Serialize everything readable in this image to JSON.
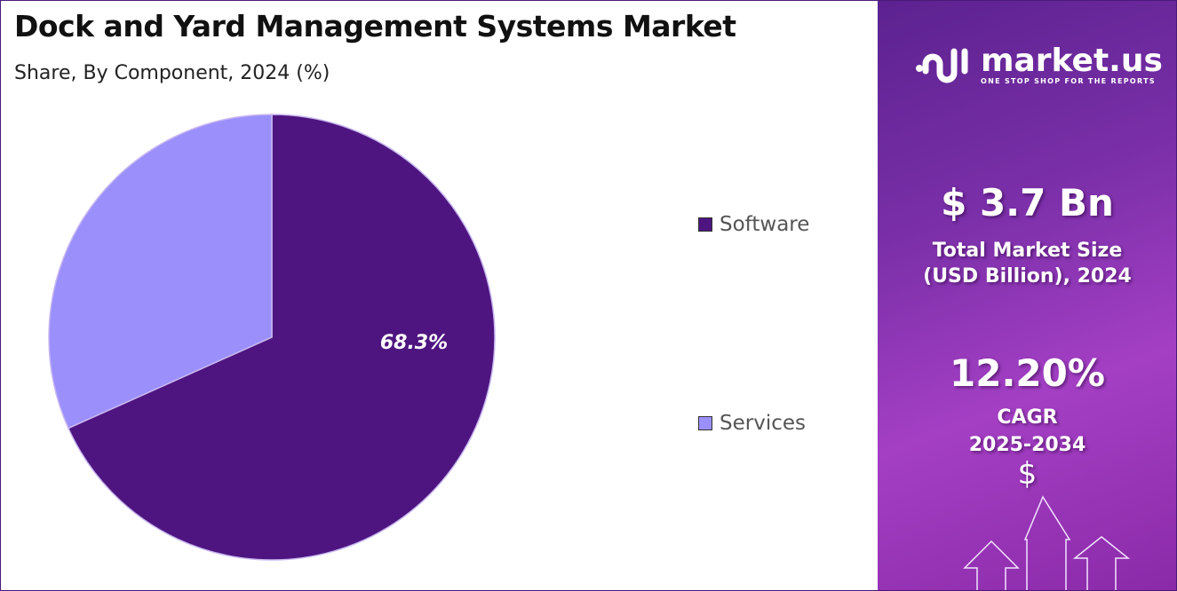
{
  "header": {
    "title": "Dock and Yard Management Systems Market",
    "subtitle": "Share, By Component, 2024 (%)"
  },
  "chart_data": {
    "type": "pie",
    "title": "Dock and Yard Management Systems Market",
    "subtitle": "Share, By Component, 2024 (%)",
    "categories": [
      "Software",
      "Services"
    ],
    "values": [
      68.3,
      31.7
    ],
    "colors": [
      "#4e1580",
      "#9b8ffc"
    ],
    "data_labels": [
      "68.3%",
      ""
    ],
    "legend_position": "right"
  },
  "sidebar": {
    "logo_name": "market.us",
    "logo_tagline": "ONE STOP SHOP FOR THE REPORTS",
    "market_size": "$ 3.7 Bn",
    "market_size_label_1": "Total Market Size",
    "market_size_label_2": "(USD Billion), 2024",
    "cagr": "12.20%",
    "cagr_label": "CAGR",
    "cagr_period": "2025-2034",
    "dollar_icon": "$"
  }
}
